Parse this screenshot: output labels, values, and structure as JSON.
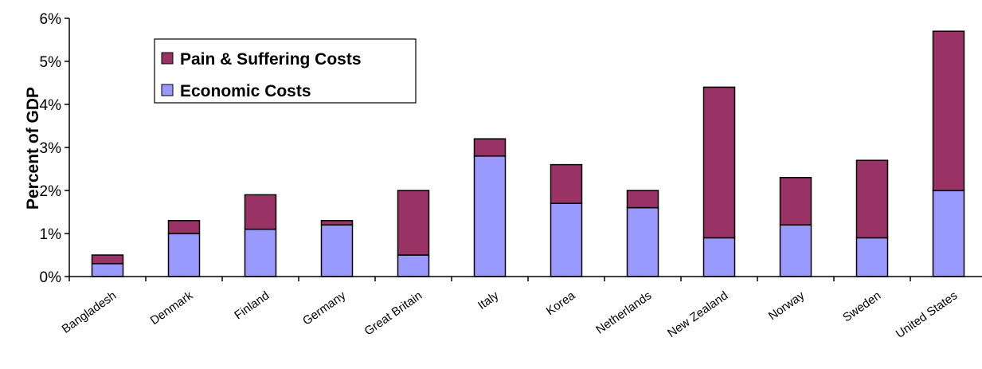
{
  "chart_data": {
    "type": "bar",
    "stacked": true,
    "title": "",
    "xlabel": "",
    "ylabel": "Percent of GDP",
    "ylim": [
      0,
      6
    ],
    "ytick_labels": [
      "0%",
      "1%",
      "2%",
      "3%",
      "4%",
      "5%",
      "6%"
    ],
    "grid": false,
    "legend_position": "top-left",
    "categories": [
      "Bangladesh",
      "Denmark",
      "Finland",
      "Germany",
      "Great Britain",
      "Italy",
      "Korea",
      "Netherlands",
      "New Zealand",
      "Norway",
      "Sweden",
      "United States"
    ],
    "series": [
      {
        "name": "Economic Costs",
        "color": "#9999ff",
        "values": [
          0.3,
          1.0,
          1.1,
          1.2,
          0.5,
          2.8,
          1.7,
          1.6,
          0.9,
          1.2,
          0.9,
          2.0
        ]
      },
      {
        "name": "Pain & Suffering Costs",
        "color": "#993366",
        "values": [
          0.2,
          0.3,
          0.8,
          0.1,
          1.5,
          0.4,
          0.9,
          0.4,
          3.5,
          1.1,
          1.8,
          3.7
        ]
      }
    ],
    "legend_order": [
      "Pain & Suffering Costs",
      "Economic Costs"
    ]
  }
}
